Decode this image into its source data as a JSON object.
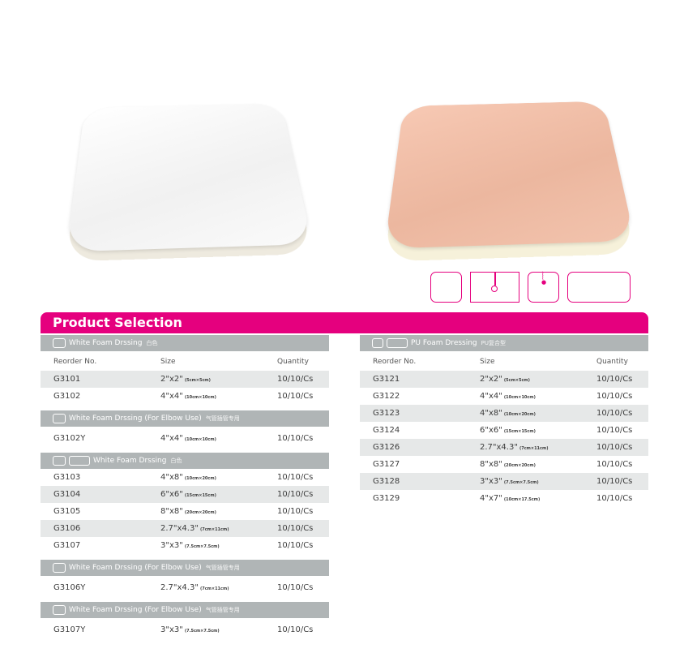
{
  "title": "Product Selection",
  "colors": {
    "accent": "#e5007e",
    "group_bar": "#b0b5b6",
    "row_shade": "#e6e8e8"
  },
  "icons": [
    "rounded-square-icon",
    "hanging-tag-icon",
    "zigzag-tag-icon",
    "wide-rect-icon"
  ],
  "columns": {
    "reorder": "Reorder No.",
    "size": "Size",
    "quantity": "Quantity"
  },
  "left_groups": [
    {
      "name": "White Foam Drssing",
      "cn": "白色",
      "rows": [
        {
          "no": "G3101",
          "size": "2\"x2\"",
          "metric": "(5cm×5cm)",
          "qty": "10/10/Cs"
        },
        {
          "no": "G3102",
          "size": "4\"x4\"",
          "metric": "(10cm×10cm)",
          "qty": "10/10/Cs"
        }
      ]
    },
    {
      "name": "White Foam Drssing (For Elbow Use)",
      "cn": "气管插管专用",
      "rows": [
        {
          "no": "G3102Y",
          "size": "4\"x4\"",
          "metric": "(10cm×10cm)",
          "qty": "10/10/Cs"
        }
      ]
    },
    {
      "name": "White Foam Drssing",
      "cn": "白色",
      "rows": [
        {
          "no": "G3103",
          "size": "4\"x8\"",
          "metric": "(10cm×20cm)",
          "qty": "10/10/Cs"
        },
        {
          "no": "G3104",
          "size": "6\"x6\"",
          "metric": "(15cm×15cm)",
          "qty": "10/10/Cs"
        },
        {
          "no": "G3105",
          "size": "8\"x8\"",
          "metric": "(20cm×20cm)",
          "qty": "10/10/Cs"
        },
        {
          "no": "G3106",
          "size": "2.7\"x4.3\"",
          "metric": "(7cm×11cm)",
          "qty": "10/10/Cs"
        },
        {
          "no": "G3107",
          "size": "3\"x3\"",
          "metric": "(7.5cm×7.5cm)",
          "qty": "10/10/Cs"
        }
      ]
    },
    {
      "name": "White Foam Drssing (For Elbow Use)",
      "cn": "气管插管专用",
      "rows": [
        {
          "no": "G3106Y",
          "size": "2.7\"x4.3\"",
          "metric": "(7cm×11cm)",
          "qty": "10/10/Cs"
        }
      ]
    },
    {
      "name": "White Foam Drssing (For Elbow Use)",
      "cn": "气管插管专用",
      "rows": [
        {
          "no": "G3107Y",
          "size": "3\"x3\"",
          "metric": "(7.5cm×7.5cm)",
          "qty": "10/10/Cs"
        }
      ]
    }
  ],
  "right_group": {
    "name": "PU Foam Dressing",
    "cn": "PU复合型",
    "rows": [
      {
        "no": "G3121",
        "size": "2\"x2\"",
        "metric": "(5cm×5cm)",
        "qty": "10/10/Cs"
      },
      {
        "no": "G3122",
        "size": "4\"x4\"",
        "metric": "(10cm×10cm)",
        "qty": "10/10/Cs"
      },
      {
        "no": "G3123",
        "size": "4\"x8\"",
        "metric": "(10cm×20cm)",
        "qty": "10/10/Cs"
      },
      {
        "no": "G3124",
        "size": "6\"x6\"",
        "metric": "(15cm×15cm)",
        "qty": "10/10/Cs"
      },
      {
        "no": "G3126",
        "size": "2.7\"x4.3\"",
        "metric": "(7cm×11cm)",
        "qty": "10/10/Cs"
      },
      {
        "no": "G3127",
        "size": "8\"x8\"",
        "metric": "(20cm×20cm)",
        "qty": "10/10/Cs"
      },
      {
        "no": "G3128",
        "size": "3\"x3\"",
        "metric": "(7.5cm×7.5cm)",
        "qty": "10/10/Cs"
      },
      {
        "no": "G3129",
        "size": "4\"x7\"",
        "metric": "(10cm×17.5cm)",
        "qty": "10/10/Cs"
      }
    ]
  }
}
